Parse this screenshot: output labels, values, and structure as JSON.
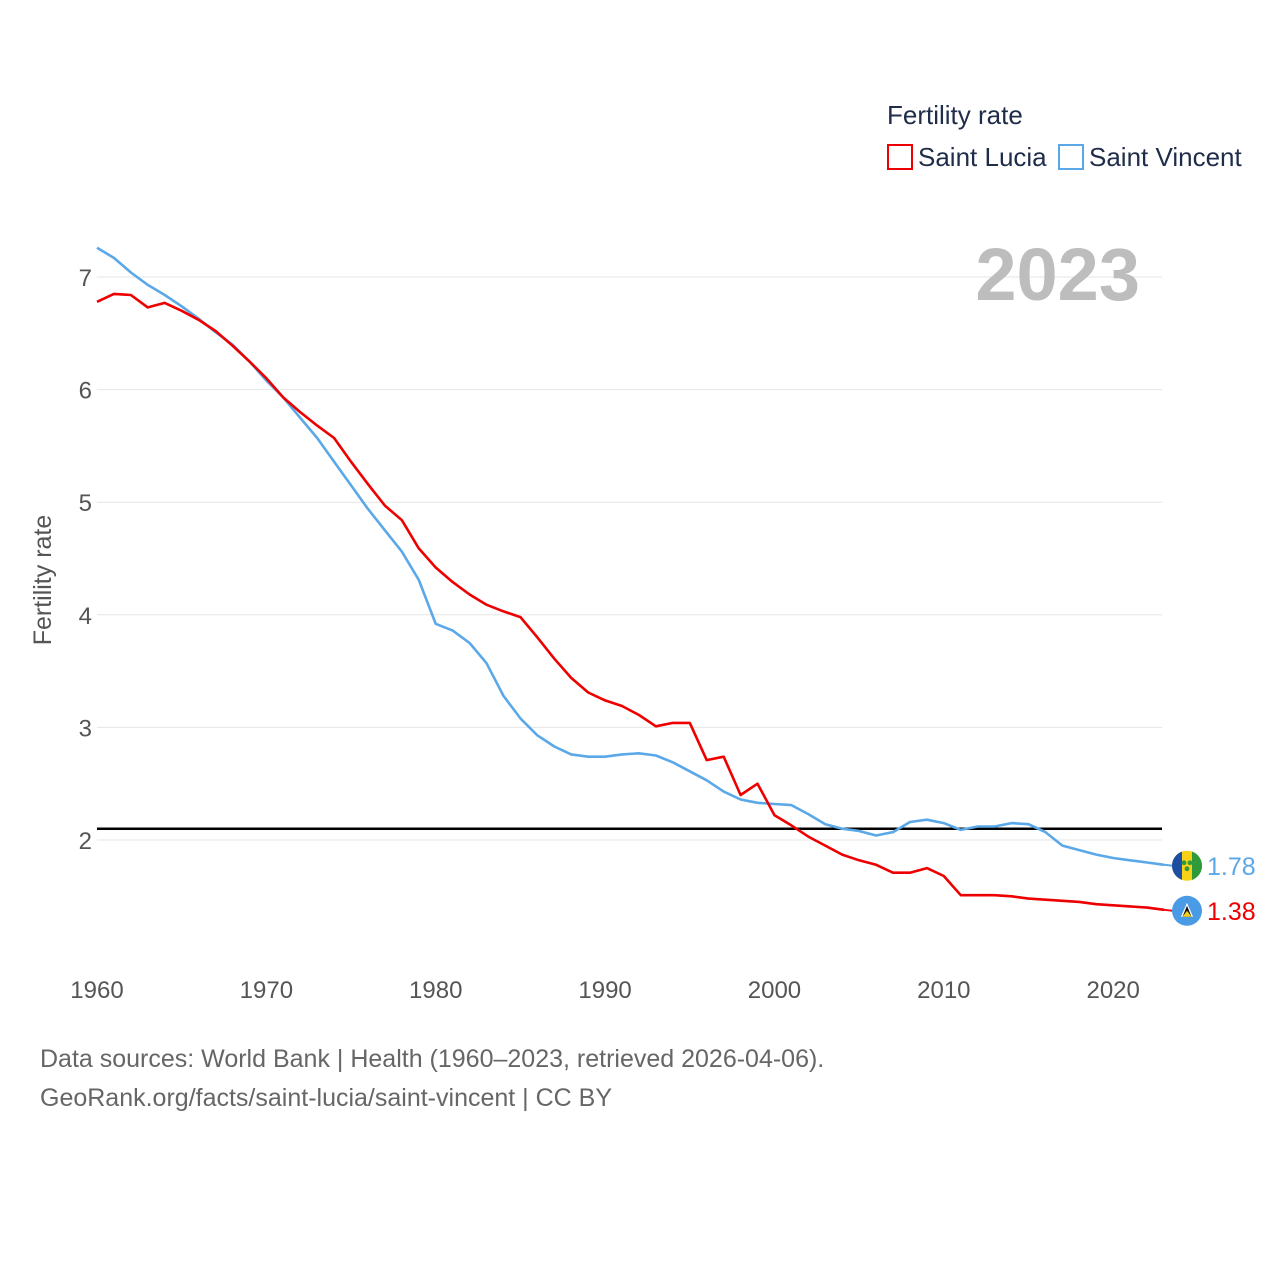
{
  "chart_data": {
    "type": "line",
    "title": "",
    "xlabel": "",
    "ylabel": "Fertility rate",
    "xlim": [
      1960,
      2023
    ],
    "ylim": [
      1.0,
      7.5
    ],
    "y_ticks": [
      "2",
      "3",
      "4",
      "5",
      "6",
      "7"
    ],
    "x_ticks": [
      "1960",
      "1970",
      "1980",
      "1990",
      "2000",
      "2010",
      "2020"
    ],
    "reference_line": 2.1,
    "year_label": "2023",
    "legend": {
      "title": "Fertility rate",
      "position": "top-right",
      "entries": [
        "Saint Lucia",
        "Saint Vincent"
      ]
    },
    "x": [
      1960,
      1961,
      1962,
      1963,
      1964,
      1965,
      1966,
      1967,
      1968,
      1969,
      1970,
      1971,
      1972,
      1973,
      1974,
      1975,
      1976,
      1977,
      1978,
      1979,
      1980,
      1981,
      1982,
      1983,
      1984,
      1985,
      1986,
      1987,
      1988,
      1989,
      1990,
      1991,
      1992,
      1993,
      1994,
      1995,
      1996,
      1997,
      1998,
      1999,
      2000,
      2001,
      2002,
      2003,
      2004,
      2005,
      2006,
      2007,
      2008,
      2009,
      2010,
      2011,
      2012,
      2013,
      2014,
      2015,
      2016,
      2017,
      2018,
      2019,
      2020,
      2021,
      2022,
      2023
    ],
    "series": [
      {
        "name": "Saint Lucia",
        "color": "#ee0000",
        "end_label": "1.38",
        "values": [
          6.78,
          6.85,
          6.84,
          6.73,
          6.77,
          6.7,
          6.62,
          6.52,
          6.39,
          6.25,
          6.1,
          5.93,
          5.8,
          5.68,
          5.57,
          5.36,
          5.16,
          4.97,
          4.84,
          4.59,
          4.42,
          4.29,
          4.18,
          4.09,
          4.03,
          3.98,
          3.8,
          3.61,
          3.44,
          3.31,
          3.24,
          3.19,
          3.11,
          3.01,
          3.04,
          3.04,
          2.71,
          2.74,
          2.4,
          2.5,
          2.22,
          2.13,
          2.03,
          1.95,
          1.87,
          1.82,
          1.78,
          1.71,
          1.71,
          1.75,
          1.68,
          1.51,
          1.51,
          1.51,
          1.5,
          1.48,
          1.47,
          1.46,
          1.45,
          1.43,
          1.42,
          1.41,
          1.4,
          1.38
        ]
      },
      {
        "name": "Saint Vincent",
        "color": "#5ba8e8",
        "end_label": "1.78",
        "values": [
          7.26,
          7.17,
          7.04,
          6.93,
          6.84,
          6.74,
          6.63,
          6.51,
          6.4,
          6.25,
          6.08,
          5.93,
          5.75,
          5.57,
          5.36,
          5.15,
          4.94,
          4.75,
          4.56,
          4.31,
          3.92,
          3.86,
          3.75,
          3.57,
          3.28,
          3.08,
          2.93,
          2.83,
          2.76,
          2.74,
          2.74,
          2.76,
          2.77,
          2.75,
          2.69,
          2.61,
          2.53,
          2.43,
          2.36,
          2.33,
          2.32,
          2.31,
          2.23,
          2.14,
          2.1,
          2.08,
          2.04,
          2.07,
          2.16,
          2.18,
          2.15,
          2.09,
          2.12,
          2.12,
          2.15,
          2.14,
          2.07,
          1.95,
          1.91,
          1.87,
          1.84,
          1.82,
          1.8,
          1.78
        ]
      }
    ]
  },
  "footer": {
    "line1": "Data sources: World Bank | Health (1960–2023, retrieved 2026-04-06).",
    "line2": "GeoRank.org/facts/saint-lucia/saint-vincent | CC BY"
  }
}
